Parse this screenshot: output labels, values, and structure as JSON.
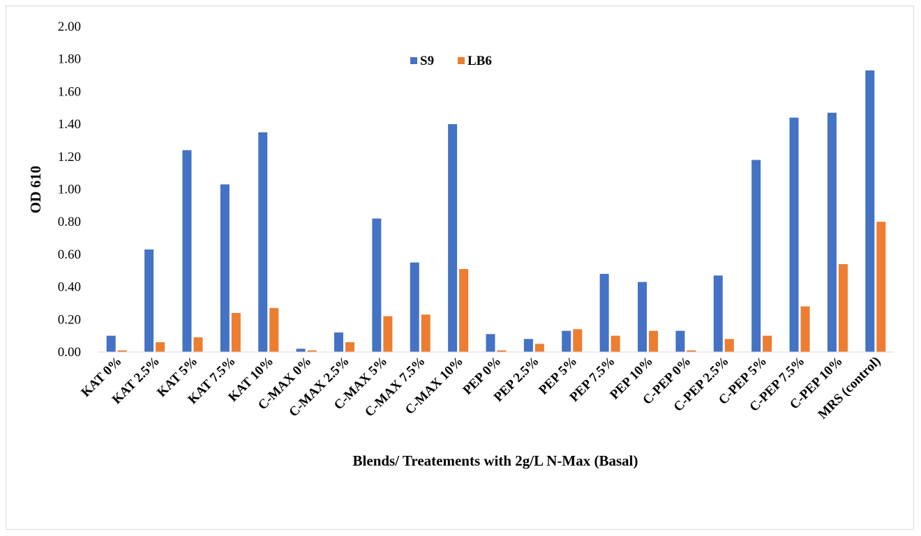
{
  "chart_data": {
    "type": "bar",
    "title": "",
    "xlabel": "Blends/ Treatements with 2g/L N-Max (Basal)",
    "ylabel": "OD 610",
    "ylim": [
      0,
      2.0
    ],
    "yticks": [
      "0.00",
      "0.20",
      "0.40",
      "0.60",
      "0.80",
      "1.00",
      "1.20",
      "1.40",
      "1.60",
      "1.80",
      "2.00"
    ],
    "grid": false,
    "legend_position": "top-center",
    "categories": [
      "KAT 0%",
      "KAT 2.5%",
      "KAT 5%",
      "KAT 7.5%",
      "KAT 10%",
      "C-MAX 0%",
      "C-MAX 2.5%",
      "C-MAX 5%",
      "C-MAX 7.5%",
      "C-MAX 10%",
      "PEP 0%",
      "PEP 2.5%",
      "PEP 5%",
      "PEP 7.5%",
      "PEP 10%",
      "C-PEP 0%",
      "C-PEP 2.5%",
      "C-PEP 5%",
      "C-PEP 7.5%",
      "C-PEP 10%",
      "MRS (control)"
    ],
    "series": [
      {
        "name": "S9",
        "color": "#4472c4",
        "values": [
          0.1,
          0.63,
          1.24,
          1.03,
          1.35,
          0.02,
          0.12,
          0.82,
          0.55,
          1.4,
          0.11,
          0.08,
          0.13,
          0.48,
          0.43,
          0.13,
          0.47,
          1.18,
          1.44,
          1.47,
          1.73
        ]
      },
      {
        "name": "LB6",
        "color": "#ed7d31",
        "values": [
          0.01,
          0.06,
          0.09,
          0.24,
          0.27,
          0.01,
          0.06,
          0.22,
          0.23,
          0.51,
          0.01,
          0.05,
          0.14,
          0.1,
          0.13,
          0.01,
          0.08,
          0.1,
          0.28,
          0.54,
          0.8
        ]
      }
    ]
  }
}
